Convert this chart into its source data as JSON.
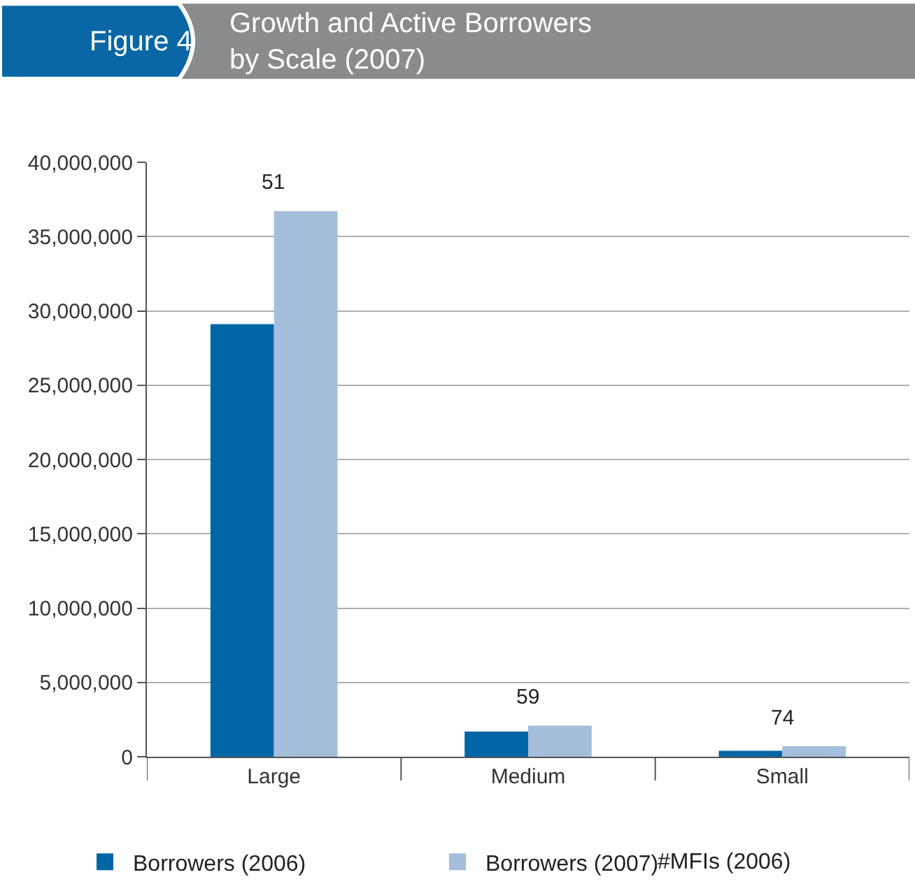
{
  "chart_data": {
    "type": "bar",
    "title": "Growth and Active Borrowers\nby Scale (2007)",
    "categories": [
      "Large",
      "Medium",
      "Small"
    ],
    "series": [
      {
        "name": "Borrowers (2006)",
        "color": "#0066a6",
        "values": [
          29100000,
          1700000,
          400000
        ]
      },
      {
        "name": "Borrowers (2007)",
        "color": "#a4bedc",
        "values": [
          36700000,
          2100000,
          700000
        ]
      }
    ],
    "ylim": [
      0,
      40000000
    ],
    "yticks": [
      {
        "value": 0,
        "label": "0"
      },
      {
        "value": 5000000,
        "label": "5,000,000"
      },
      {
        "value": 10000000,
        "label": "10,000,000"
      },
      {
        "value": 15000000,
        "label": "15,000,000"
      },
      {
        "value": 20000000,
        "label": "20,000,000"
      },
      {
        "value": 25000000,
        "label": "25,000,000"
      },
      {
        "value": 30000000,
        "label": "30,000,000"
      },
      {
        "value": 35000000,
        "label": "35,000,000"
      },
      {
        "value": 40000000,
        "label": "40,000,000"
      }
    ],
    "annotations": [
      "Figure 4",
      "#MFIs (2006)",
      "51",
      "59",
      "74"
    ],
    "grid": "y",
    "legend": "bottom"
  }
}
